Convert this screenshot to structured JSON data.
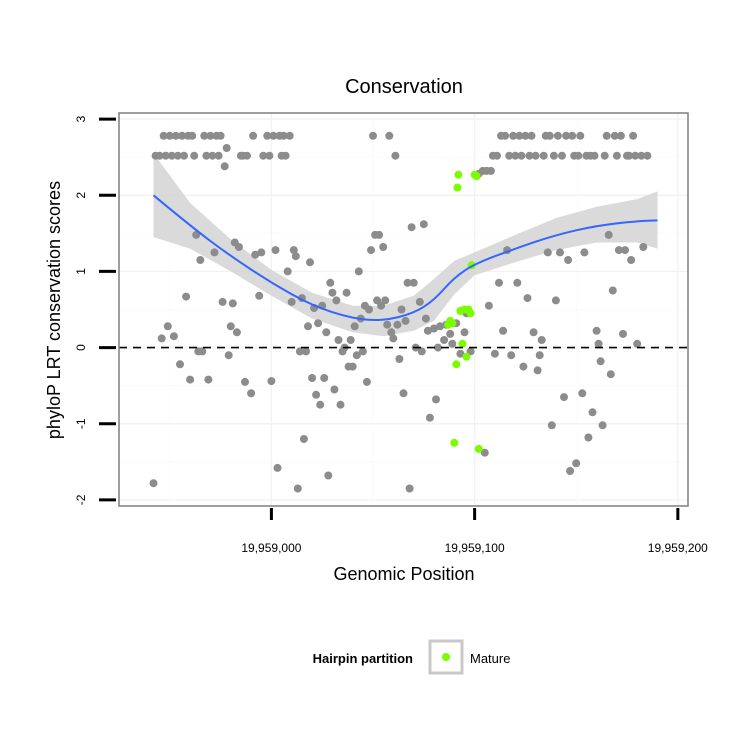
{
  "chart_data": {
    "type": "scatter",
    "title": "Conservation",
    "xlabel": "Genomic Position",
    "ylabel": "phyloP LRT conservation scores",
    "xlim": [
      19958925,
      19959205
    ],
    "ylim": [
      -2.08,
      3.08
    ],
    "x_ticks": [
      {
        "value": 19959000,
        "label": "19,959,000"
      },
      {
        "value": 19959100,
        "label": "19,959,100"
      },
      {
        "value": 19959200,
        "label": "19,959,200"
      }
    ],
    "y_ticks": [
      {
        "value": -2,
        "label": "-2"
      },
      {
        "value": -1,
        "label": "-1"
      },
      {
        "value": 0,
        "label": "0"
      },
      {
        "value": 1,
        "label": "1"
      },
      {
        "value": 2,
        "label": "2"
      },
      {
        "value": 3,
        "label": "3"
      }
    ],
    "grid": true,
    "reference_line": {
      "y": 0,
      "style": "dashed"
    },
    "colors": {
      "points": "#8c8c8c",
      "mature": "#7cfc00",
      "smooth": "#3366ff",
      "ribbon": "#d3d3d3",
      "panel_border": "#7f7f7f",
      "grid": "#f2f2f2"
    },
    "series": [
      {
        "values": [
          [
            19958942,
            -1.78
          ],
          [
            19958943,
            2.52
          ],
          [
            19958945,
            2.52
          ],
          [
            19958946,
            0.12
          ],
          [
            19958947,
            2.78
          ],
          [
            19958948,
            2.52
          ],
          [
            19958949,
            0.28
          ],
          [
            19958950,
            2.78
          ],
          [
            19958951,
            2.52
          ],
          [
            19958952,
            0.15
          ],
          [
            19958953,
            2.78
          ],
          [
            19958954,
            2.52
          ],
          [
            19958955,
            -0.22
          ],
          [
            19958956,
            2.78
          ],
          [
            19958957,
            2.52
          ],
          [
            19958958,
            0.67
          ],
          [
            19958959,
            2.78
          ],
          [
            19958960,
            -0.42
          ],
          [
            19958961,
            2.78
          ],
          [
            19958962,
            2.52
          ],
          [
            19958963,
            1.48
          ],
          [
            19958964,
            -0.05
          ],
          [
            19958965,
            1.15
          ],
          [
            19958966,
            -0.05
          ],
          [
            19958967,
            2.78
          ],
          [
            19958968,
            2.52
          ],
          [
            19958969,
            -0.42
          ],
          [
            19958970,
            2.78
          ],
          [
            19958971,
            2.52
          ],
          [
            19958972,
            1.25
          ],
          [
            19958973,
            2.78
          ],
          [
            19958974,
            2.52
          ],
          [
            19958975,
            2.78
          ],
          [
            19958976,
            0.6
          ],
          [
            19958977,
            2.38
          ],
          [
            19958978,
            2.62
          ],
          [
            19958979,
            -0.1
          ],
          [
            19958980,
            0.28
          ],
          [
            19958981,
            0.58
          ],
          [
            19958982,
            1.38
          ],
          [
            19958983,
            0.2
          ],
          [
            19958984,
            1.32
          ],
          [
            19958985,
            2.52
          ],
          [
            19958986,
            2.52
          ],
          [
            19958987,
            -0.45
          ],
          [
            19958988,
            2.52
          ],
          [
            19958990,
            -0.6
          ],
          [
            19958991,
            2.78
          ],
          [
            19958992,
            1.22
          ],
          [
            19958994,
            0.68
          ],
          [
            19958995,
            1.25
          ],
          [
            19958996,
            2.52
          ],
          [
            19958998,
            2.78
          ],
          [
            19958999,
            2.52
          ],
          [
            19959000,
            -0.44
          ],
          [
            19959001,
            2.78
          ],
          [
            19959002,
            1.28
          ],
          [
            19959003,
            -1.58
          ],
          [
            19959004,
            2.78
          ],
          [
            19959005,
            2.52
          ],
          [
            19959006,
            2.78
          ],
          [
            19959007,
            2.52
          ],
          [
            19959008,
            1.0
          ],
          [
            19959009,
            2.78
          ],
          [
            19959010,
            0.6
          ],
          [
            19959011,
            1.28
          ],
          [
            19959012,
            1.2
          ],
          [
            19959013,
            -1.85
          ],
          [
            19959014,
            -0.05
          ],
          [
            19959015,
            0.65
          ],
          [
            19959016,
            -1.2
          ],
          [
            19959017,
            -0.05
          ],
          [
            19959018,
            0.28
          ],
          [
            19959019,
            1.12
          ],
          [
            19959020,
            -0.4
          ],
          [
            19959021,
            0.52
          ],
          [
            19959022,
            -0.62
          ],
          [
            19959023,
            0.32
          ],
          [
            19959024,
            -0.75
          ],
          [
            19959025,
            0.55
          ],
          [
            19959026,
            -0.4
          ],
          [
            19959027,
            0.2
          ],
          [
            19959028,
            -1.68
          ],
          [
            19959029,
            0.85
          ],
          [
            19959030,
            0.72
          ],
          [
            19959031,
            -0.55
          ],
          [
            19959032,
            0.62
          ],
          [
            19959033,
            0.1
          ],
          [
            19959034,
            -0.75
          ],
          [
            19959035,
            -0.05
          ],
          [
            19959036,
            0.0
          ],
          [
            19959037,
            0.72
          ],
          [
            19959038,
            -0.25
          ],
          [
            19959039,
            0.1
          ],
          [
            19959040,
            -0.25
          ],
          [
            19959041,
            0.28
          ],
          [
            19959042,
            -0.1
          ],
          [
            19959043,
            1.0
          ],
          [
            19959044,
            0.38
          ],
          [
            19959045,
            -0.05
          ],
          [
            19959046,
            0.55
          ],
          [
            19959047,
            -0.45
          ],
          [
            19959048,
            0.5
          ],
          [
            19959049,
            1.28
          ],
          [
            19959050,
            2.78
          ],
          [
            19959051,
            1.48
          ],
          [
            19959052,
            0.62
          ],
          [
            19959053,
            1.48
          ],
          [
            19959054,
            0.55
          ],
          [
            19959055,
            1.32
          ],
          [
            19959056,
            0.62
          ],
          [
            19959057,
            0.3
          ],
          [
            19959058,
            2.78
          ],
          [
            19959059,
            0.2
          ],
          [
            19959060,
            0.12
          ],
          [
            19959061,
            2.52
          ],
          [
            19959062,
            0.3
          ],
          [
            19959063,
            -0.15
          ],
          [
            19959064,
            0.5
          ],
          [
            19959065,
            -0.6
          ],
          [
            19959066,
            0.35
          ],
          [
            19959067,
            0.85
          ],
          [
            19959068,
            -1.85
          ],
          [
            19959069,
            1.58
          ],
          [
            19959070,
            0.85
          ],
          [
            19959071,
            0.0
          ],
          [
            19959073,
            0.6
          ],
          [
            19959074,
            -0.05
          ],
          [
            19959075,
            1.62
          ],
          [
            19959076,
            0.38
          ],
          [
            19959077,
            0.22
          ],
          [
            19959078,
            -0.92
          ],
          [
            19959080,
            0.25
          ],
          [
            19959081,
            -0.68
          ],
          [
            19959082,
            0.0
          ],
          [
            19959083,
            0.28
          ],
          [
            19959085,
            0.1
          ],
          [
            19959086,
            0.3
          ],
          [
            19959088,
            0.18
          ],
          [
            19959089,
            0.05
          ],
          [
            19959091,
            0.32
          ],
          [
            19959093,
            -0.08
          ],
          [
            19959095,
            0.2
          ],
          [
            19959096,
            0.45
          ],
          [
            19959098,
            -0.05
          ],
          [
            19959102,
            2.28
          ],
          [
            19959104,
            2.32
          ],
          [
            19959105,
            -1.38
          ],
          [
            19959106,
            2.32
          ],
          [
            19959107,
            0.55
          ],
          [
            19959108,
            2.32
          ],
          [
            19959109,
            2.52
          ],
          [
            19959110,
            -0.08
          ],
          [
            19959111,
            2.52
          ],
          [
            19959112,
            0.85
          ],
          [
            19959113,
            2.78
          ],
          [
            19959114,
            0.22
          ],
          [
            19959115,
            2.78
          ],
          [
            19959116,
            1.28
          ],
          [
            19959117,
            2.52
          ],
          [
            19959118,
            -0.1
          ],
          [
            19959119,
            2.78
          ],
          [
            19959120,
            2.52
          ],
          [
            19959121,
            0.85
          ],
          [
            19959122,
            2.78
          ],
          [
            19959123,
            2.52
          ],
          [
            19959124,
            -0.25
          ],
          [
            19959125,
            2.78
          ],
          [
            19959126,
            0.65
          ],
          [
            19959127,
            2.52
          ],
          [
            19959128,
            2.78
          ],
          [
            19959129,
            0.2
          ],
          [
            19959130,
            2.52
          ],
          [
            19959131,
            -0.3
          ],
          [
            19959132,
            -0.1
          ],
          [
            19959133,
            0.1
          ],
          [
            19959134,
            2.52
          ],
          [
            19959135,
            2.78
          ],
          [
            19959136,
            1.25
          ],
          [
            19959137,
            2.78
          ],
          [
            19959138,
            -1.02
          ],
          [
            19959139,
            2.52
          ],
          [
            19959140,
            0.62
          ],
          [
            19959141,
            2.78
          ],
          [
            19959142,
            1.25
          ],
          [
            19959143,
            2.52
          ],
          [
            19959144,
            -0.65
          ],
          [
            19959145,
            2.78
          ],
          [
            19959146,
            1.15
          ],
          [
            19959147,
            -1.62
          ],
          [
            19959148,
            2.78
          ],
          [
            19959149,
            2.52
          ],
          [
            19959150,
            -1.52
          ],
          [
            19959151,
            2.52
          ],
          [
            19959152,
            2.78
          ],
          [
            19959153,
            -0.6
          ],
          [
            19959154,
            1.25
          ],
          [
            19959155,
            2.52
          ],
          [
            19959156,
            -1.18
          ],
          [
            19959157,
            2.52
          ],
          [
            19959158,
            -0.85
          ],
          [
            19959159,
            2.52
          ],
          [
            19959160,
            0.22
          ],
          [
            19959161,
            0.05
          ],
          [
            19959162,
            -0.18
          ],
          [
            19959163,
            -1.02
          ],
          [
            19959164,
            2.52
          ],
          [
            19959165,
            2.78
          ],
          [
            19959166,
            1.48
          ],
          [
            19959167,
            -0.35
          ],
          [
            19959168,
            0.75
          ],
          [
            19959169,
            2.78
          ],
          [
            19959170,
            2.52
          ],
          [
            19959171,
            1.28
          ],
          [
            19959172,
            2.78
          ],
          [
            19959173,
            0.18
          ],
          [
            19959174,
            1.28
          ],
          [
            19959175,
            2.52
          ],
          [
            19959176,
            2.52
          ],
          [
            19959177,
            1.15
          ],
          [
            19959178,
            2.78
          ],
          [
            19959179,
            2.52
          ],
          [
            19959180,
            0.05
          ],
          [
            19959182,
            2.52
          ],
          [
            19959183,
            1.32
          ],
          [
            19959185,
            2.52
          ]
        ]
      },
      {
        "name": "Mature",
        "values": [
          [
            19959087,
            0.3
          ],
          [
            19959088,
            0.35
          ],
          [
            19959089,
            0.32
          ],
          [
            19959090,
            -1.25
          ],
          [
            19959091,
            -0.22
          ],
          [
            19959091.5,
            2.1
          ],
          [
            19959092,
            2.27
          ],
          [
            19959093,
            0.48
          ],
          [
            19959094,
            0.05
          ],
          [
            19959095,
            0.5
          ],
          [
            19959096,
            -0.12
          ],
          [
            19959097,
            0.5
          ],
          [
            19959098,
            0.45
          ],
          [
            19959098.5,
            1.08
          ],
          [
            19959100,
            2.27
          ],
          [
            19959101,
            2.25
          ],
          [
            19959102,
            -1.33
          ]
        ]
      }
    ],
    "smooth": {
      "x": [
        19958942,
        19958960,
        19958980,
        19959000,
        19959020,
        19959040,
        19959055,
        19959070,
        19959080,
        19959090,
        19959100,
        19959120,
        19959140,
        19959160,
        19959180,
        19959190
      ],
      "y": [
        2.0,
        1.6,
        1.2,
        0.85,
        0.55,
        0.38,
        0.35,
        0.45,
        0.62,
        0.92,
        1.1,
        1.3,
        1.48,
        1.6,
        1.66,
        1.67
      ],
      "lower": [
        1.45,
        1.3,
        1.0,
        0.68,
        0.38,
        0.2,
        0.15,
        0.22,
        0.35,
        0.7,
        0.95,
        1.12,
        1.28,
        1.38,
        1.38,
        1.3
      ],
      "upper": [
        2.55,
        1.9,
        1.42,
        1.02,
        0.72,
        0.55,
        0.55,
        0.68,
        0.9,
        1.14,
        1.25,
        1.48,
        1.7,
        1.85,
        1.95,
        2.05
      ]
    },
    "legend": {
      "title": "Hairpin partition",
      "label": "Mature",
      "placement": "bottom"
    }
  }
}
